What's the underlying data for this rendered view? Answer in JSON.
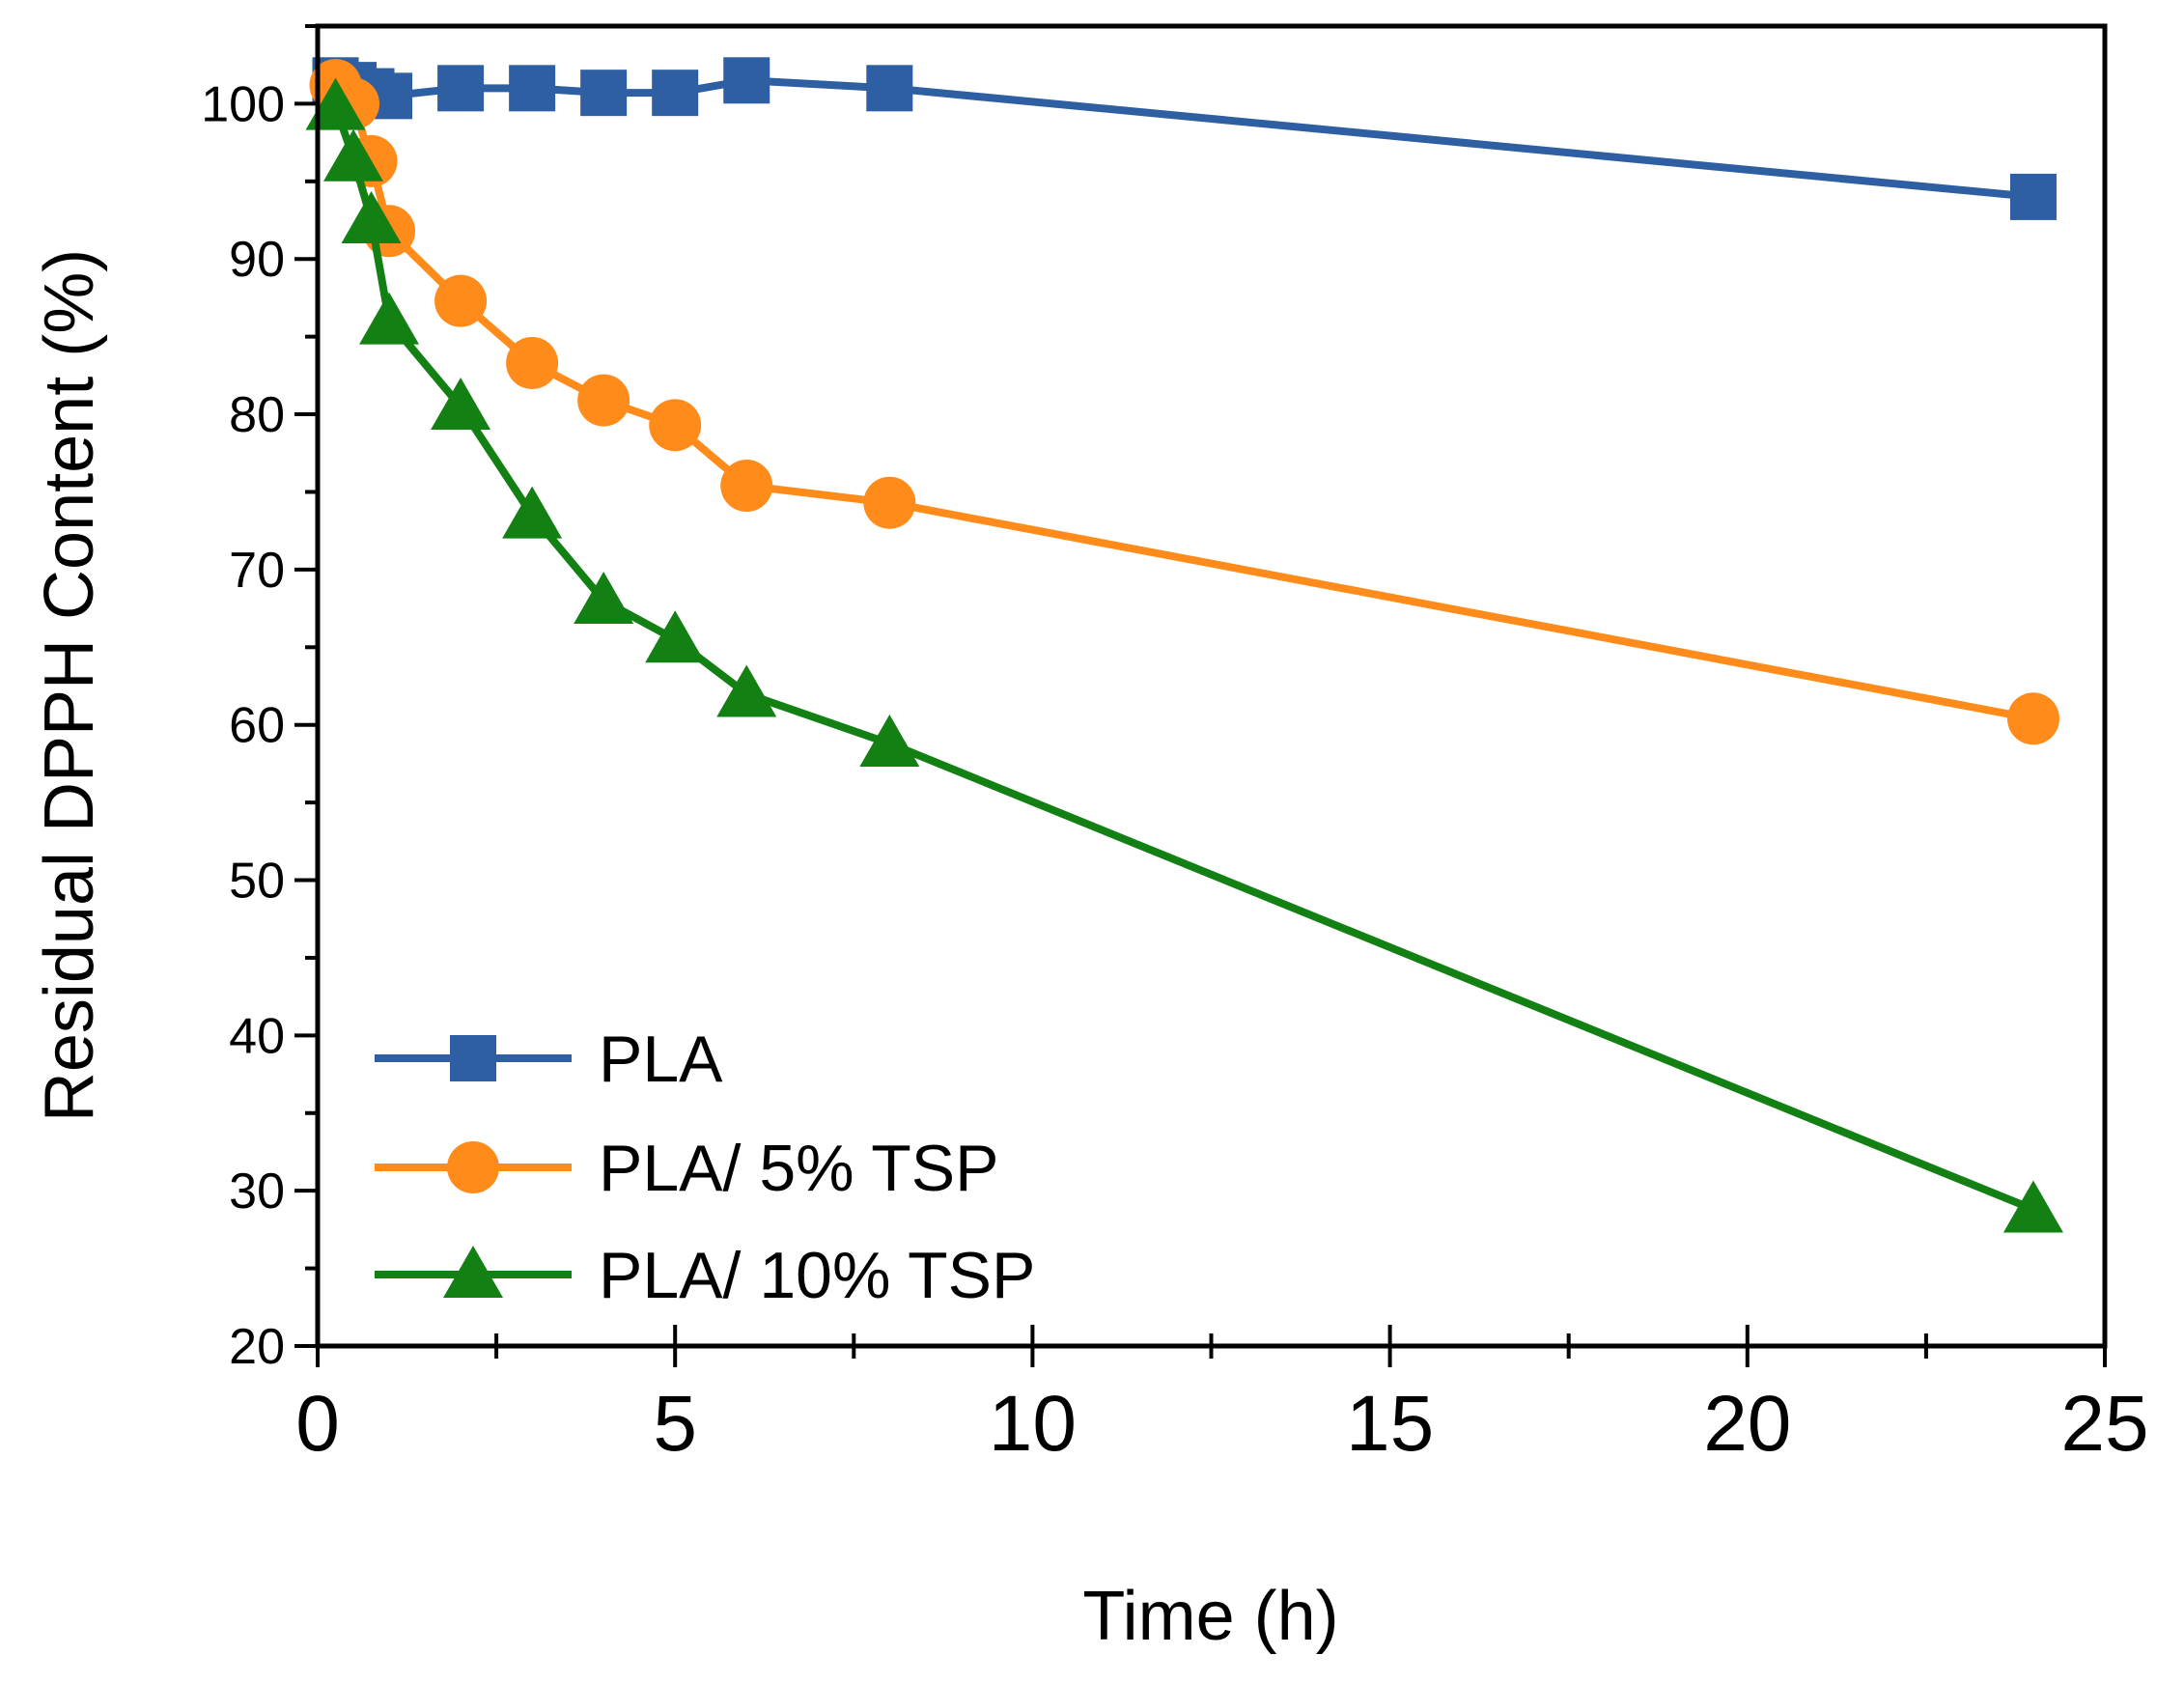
{
  "chart_data": {
    "type": "line",
    "title": "",
    "xlabel": "Time (h)",
    "ylabel": "Residual DPPH Content (%)",
    "xlim": [
      0,
      25
    ],
    "ylim": [
      20,
      105
    ],
    "xticks": [
      0,
      5,
      10,
      15,
      20,
      25
    ],
    "yticks": [
      20,
      30,
      40,
      50,
      60,
      70,
      80,
      90,
      100
    ],
    "grid": false,
    "legend_position": "bottom-left",
    "series": [
      {
        "name": "PLA",
        "marker": "square",
        "color": "#2e5fa3",
        "x": [
          0.25,
          0.5,
          0.75,
          1,
          2,
          3,
          4,
          5,
          6,
          8,
          24
        ],
        "y": [
          101.5,
          101.2,
          100.8,
          100.5,
          101.0,
          101.0,
          100.7,
          100.7,
          101.5,
          101.0,
          94.0
        ]
      },
      {
        "name": "PLA/ 5% TSP",
        "marker": "circle",
        "color": "#ff8c1a",
        "x": [
          0.25,
          0.5,
          0.75,
          1,
          2,
          3,
          4,
          5,
          6,
          8,
          24
        ],
        "y": [
          101.2,
          100.0,
          96.3,
          91.8,
          87.3,
          83.3,
          80.9,
          79.3,
          75.4,
          74.3,
          60.4
        ]
      },
      {
        "name": "PLA/ 10% TSP",
        "marker": "triangle",
        "color": "#138013",
        "x": [
          0.25,
          0.5,
          0.75,
          1,
          2,
          3,
          4,
          5,
          6,
          8,
          24
        ],
        "y": [
          99.8,
          96.5,
          92.5,
          86.0,
          80.5,
          73.5,
          68.0,
          65.5,
          62.0,
          58.8,
          28.8
        ]
      }
    ]
  }
}
